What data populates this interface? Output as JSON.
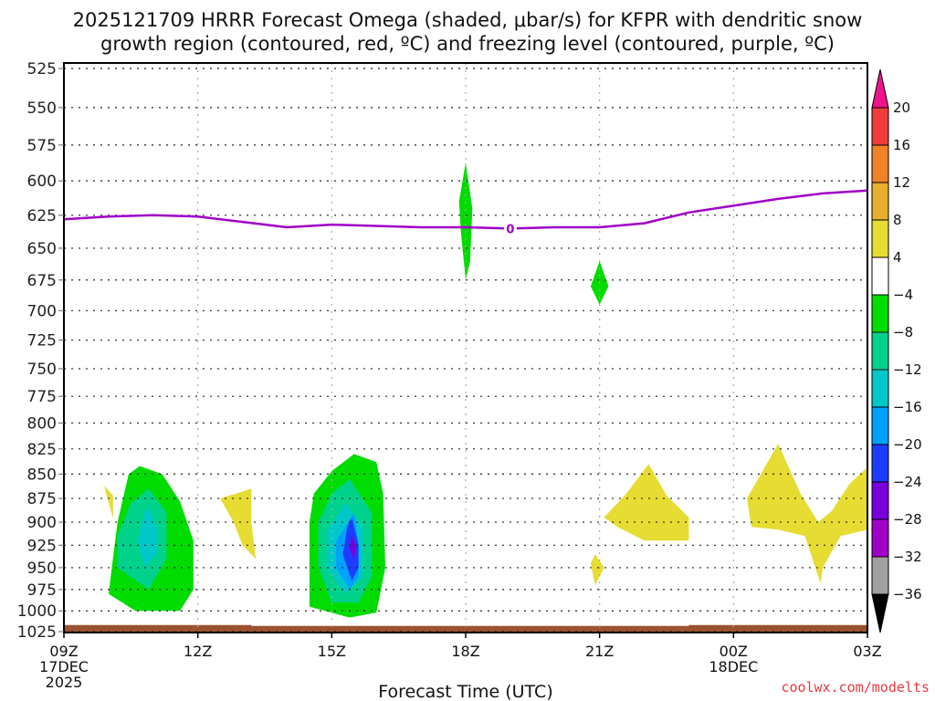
{
  "chart_data": {
    "type": "heatmap",
    "title_lines": [
      "2025121709 HRRR Forecast Omega (shaded, μbar/s) for KFPR with dendritic snow",
      "growth region (contoured, red, ºC) and freezing level (contoured, purple, ºC)"
    ],
    "xlabel": "Forecast Time (UTC)",
    "ylabel": "",
    "credit": "coolwx.com/modelts",
    "x_range_hours": [
      0,
      18
    ],
    "x_ticks": [
      {
        "hour": 0,
        "lines": [
          "09Z",
          "17DEC",
          "2025"
        ]
      },
      {
        "hour": 3,
        "lines": [
          "12Z"
        ]
      },
      {
        "hour": 6,
        "lines": [
          "15Z"
        ]
      },
      {
        "hour": 9,
        "lines": [
          "18Z"
        ]
      },
      {
        "hour": 12,
        "lines": [
          "21Z"
        ]
      },
      {
        "hour": 15,
        "lines": [
          "00Z",
          "18DEC"
        ]
      },
      {
        "hour": 18,
        "lines": [
          "03Z"
        ]
      }
    ],
    "y_range_hpa": [
      525,
      1025
    ],
    "y_ticks": [
      525,
      550,
      575,
      600,
      625,
      650,
      675,
      700,
      725,
      750,
      775,
      800,
      825,
      850,
      875,
      900,
      925,
      950,
      975,
      1000,
      1025
    ],
    "grid": true,
    "colorbar": {
      "placement": "right",
      "labels": [
        "20",
        "16",
        "12",
        "8",
        "4",
        "−4",
        "−8",
        "−12",
        "−16",
        "−20",
        "−24",
        "−28",
        "−32",
        "−36"
      ],
      "over_color": "#f0148c",
      "under_color": "#000000",
      "bins": [
        {
          "range": [
            16,
            20
          ],
          "color": "#f03c3c"
        },
        {
          "range": [
            12,
            16
          ],
          "color": "#f08228"
        },
        {
          "range": [
            8,
            12
          ],
          "color": "#e6af2d"
        },
        {
          "range": [
            4,
            8
          ],
          "color": "#e6dc32"
        },
        {
          "range": [
            -4,
            4
          ],
          "color": "#ffffff"
        },
        {
          "range": [
            -8,
            -4
          ],
          "color": "#00dc00"
        },
        {
          "range": [
            -12,
            -8
          ],
          "color": "#00d28c"
        },
        {
          "range": [
            -16,
            -12
          ],
          "color": "#00c8c8"
        },
        {
          "range": [
            -20,
            -16
          ],
          "color": "#00a0ff"
        },
        {
          "range": [
            -24,
            -20
          ],
          "color": "#1e3cff"
        },
        {
          "range": [
            -28,
            -24
          ],
          "color": "#7800dc"
        },
        {
          "range": [
            -32,
            -28
          ],
          "color": "#a000c8"
        },
        {
          "range": [
            -36,
            -32
          ],
          "color": "#a0a0a0"
        }
      ]
    },
    "freezing_level": {
      "label": "0",
      "color": "#a000c8",
      "points": [
        [
          0,
          628
        ],
        [
          1,
          626
        ],
        [
          2,
          625
        ],
        [
          3,
          626
        ],
        [
          4,
          630
        ],
        [
          5,
          634
        ],
        [
          6,
          632
        ],
        [
          7,
          633
        ],
        [
          8,
          634
        ],
        [
          9,
          634
        ],
        [
          10,
          635
        ],
        [
          11,
          634
        ],
        [
          12,
          634
        ],
        [
          13,
          631
        ],
        [
          14,
          623
        ],
        [
          15,
          618
        ],
        [
          16,
          613
        ],
        [
          17,
          609
        ],
        [
          18,
          607
        ]
      ]
    },
    "terrain": {
      "color": "#9c5230",
      "surface_hpa": [
        [
          0,
          1017
        ],
        [
          4.2,
          1017
        ],
        [
          4.2,
          1018
        ],
        [
          14.0,
          1018
        ],
        [
          14.0,
          1017
        ],
        [
          18,
          1017
        ]
      ]
    },
    "omega_regions": [
      {
        "value_bin": "4 to 8",
        "color": "#e6dc32",
        "points": [
          [
            0.9,
            862
          ],
          [
            1.1,
            896
          ],
          [
            1.1,
            872
          ]
        ]
      },
      {
        "value_bin": "-4 to -8",
        "color": "#00dc00",
        "points": [
          [
            1.45,
            850
          ],
          [
            1.7,
            842
          ],
          [
            2.2,
            850
          ],
          [
            2.6,
            878
          ],
          [
            2.9,
            920
          ],
          [
            2.9,
            975
          ],
          [
            2.6,
            1000
          ],
          [
            1.6,
            1000
          ],
          [
            1.0,
            980
          ],
          [
            1.2,
            900
          ]
        ]
      },
      {
        "value_bin": "-8 to -12",
        "color": "#00d28c",
        "points": [
          [
            1.2,
            950
          ],
          [
            1.2,
            915
          ],
          [
            1.5,
            880
          ],
          [
            1.9,
            865
          ],
          [
            2.3,
            890
          ],
          [
            2.3,
            940
          ],
          [
            1.9,
            975
          ]
        ]
      },
      {
        "value_bin": "-12 to -16",
        "color": "#00c8c8",
        "points": [
          [
            1.8,
            890
          ],
          [
            1.9,
            885
          ],
          [
            2.1,
            907
          ],
          [
            2.1,
            933
          ],
          [
            1.8,
            950
          ],
          [
            1.65,
            920
          ]
        ]
      },
      {
        "value_bin": "4 to 8",
        "color": "#e6dc32",
        "points": [
          [
            3.5,
            875
          ],
          [
            4.2,
            865
          ],
          [
            4.2,
            900
          ],
          [
            4.3,
            940
          ],
          [
            4.0,
            925
          ],
          [
            3.8,
            900
          ]
        ]
      },
      {
        "value_bin": "-4 to -8",
        "color": "#00dc00",
        "points": [
          [
            5.6,
            870
          ],
          [
            6.0,
            847
          ],
          [
            6.5,
            830
          ],
          [
            7.0,
            838
          ],
          [
            7.15,
            870
          ],
          [
            7.2,
            950
          ],
          [
            7.0,
            1002
          ],
          [
            6.4,
            1008
          ],
          [
            5.5,
            995
          ],
          [
            5.5,
            930
          ],
          [
            5.5,
            900
          ]
        ]
      },
      {
        "value_bin": "-8 to -12",
        "color": "#00d28c",
        "points": [
          [
            5.7,
            900
          ],
          [
            6.0,
            870
          ],
          [
            6.4,
            855
          ],
          [
            6.9,
            890
          ],
          [
            6.9,
            960
          ],
          [
            6.6,
            990
          ],
          [
            6.0,
            990
          ],
          [
            5.7,
            950
          ]
        ]
      },
      {
        "value_bin": "-12 to -16",
        "color": "#00c8c8",
        "points": [
          [
            5.9,
            910
          ],
          [
            6.3,
            880
          ],
          [
            6.7,
            905
          ],
          [
            6.7,
            960
          ],
          [
            6.3,
            980
          ],
          [
            5.9,
            950
          ]
        ]
      },
      {
        "value_bin": "-16 to -20",
        "color": "#00a0ff",
        "points": [
          [
            6.1,
            920
          ],
          [
            6.5,
            890
          ],
          [
            6.6,
            925
          ],
          [
            6.6,
            960
          ],
          [
            6.4,
            975
          ],
          [
            6.1,
            950
          ]
        ]
      },
      {
        "value_bin": "-20 to -24",
        "color": "#1e3cff",
        "points": [
          [
            6.35,
            905
          ],
          [
            6.45,
            895
          ],
          [
            6.6,
            925
          ],
          [
            6.6,
            950
          ],
          [
            6.45,
            965
          ],
          [
            6.25,
            935
          ]
        ]
      },
      {
        "value_bin": "-24 to -28",
        "color": "#7800dc",
        "points": [
          [
            6.45,
            915
          ],
          [
            6.55,
            925
          ],
          [
            6.5,
            942
          ],
          [
            6.4,
            928
          ]
        ]
      },
      {
        "value_bin": "-4 to -8",
        "color": "#00dc00",
        "points": [
          [
            9.0,
            587
          ],
          [
            9.15,
            620
          ],
          [
            9.1,
            660
          ],
          [
            9.0,
            675
          ],
          [
            8.9,
            640
          ],
          [
            8.85,
            615
          ]
        ]
      },
      {
        "value_bin": "-4 to -8",
        "color": "#00dc00",
        "points": [
          [
            12.0,
            660
          ],
          [
            12.2,
            680
          ],
          [
            12.0,
            695
          ],
          [
            11.8,
            680
          ]
        ]
      },
      {
        "value_bin": "4 to 8",
        "color": "#e6dc32",
        "points": [
          [
            11.8,
            945
          ],
          [
            11.9,
            935
          ],
          [
            12.1,
            950
          ],
          [
            11.9,
            970
          ]
        ]
      },
      {
        "value_bin": "4 to 8",
        "color": "#e6dc32",
        "points": [
          [
            12.1,
            895
          ],
          [
            12.6,
            870
          ],
          [
            13.1,
            840
          ],
          [
            13.5,
            872
          ],
          [
            14.0,
            895
          ],
          [
            14.0,
            920
          ],
          [
            13.0,
            920
          ],
          [
            12.4,
            905
          ]
        ]
      },
      {
        "value_bin": "4 to 8",
        "color": "#e6dc32",
        "points": [
          [
            15.3,
            875
          ],
          [
            16.0,
            820
          ],
          [
            16.5,
            870
          ],
          [
            16.9,
            900
          ],
          [
            17.2,
            888
          ],
          [
            17.6,
            860
          ],
          [
            18.0,
            843
          ],
          [
            18.0,
            908
          ],
          [
            17.4,
            915
          ],
          [
            17.0,
            950
          ],
          [
            16.95,
            968
          ],
          [
            16.6,
            915
          ],
          [
            16.0,
            908
          ],
          [
            15.4,
            905
          ]
        ]
      }
    ]
  }
}
